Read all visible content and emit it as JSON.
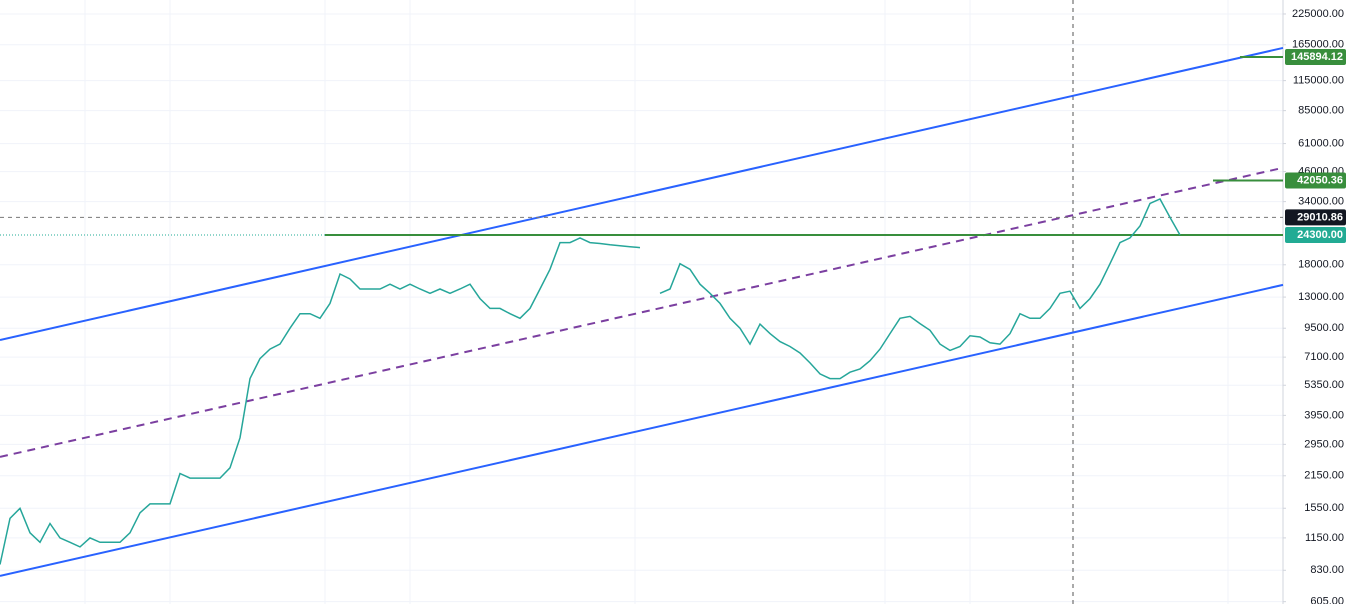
{
  "chart_data": {
    "type": "line",
    "log_scale": true,
    "grid": true,
    "ylim": [
      591,
      259000
    ],
    "yticks": [
      {
        "value": 605,
        "label": "605.00"
      },
      {
        "value": 830,
        "label": "830.00"
      },
      {
        "value": 1150,
        "label": "1150.00"
      },
      {
        "value": 1550,
        "label": "1550.00"
      },
      {
        "value": 2150,
        "label": "2150.00"
      },
      {
        "value": 2950,
        "label": "2950.00"
      },
      {
        "value": 3950,
        "label": "3950.00"
      },
      {
        "value": 5350,
        "label": "5350.00"
      },
      {
        "value": 7100,
        "label": "7100.00"
      },
      {
        "value": 9500,
        "label": "9500.00"
      },
      {
        "value": 13000,
        "label": "13000.00"
      },
      {
        "value": 18000,
        "label": "18000.00"
      },
      {
        "value": 34000,
        "label": "34000.00"
      },
      {
        "value": 46000,
        "label": "46000.00"
      },
      {
        "value": 61000,
        "label": "61000.00"
      },
      {
        "value": 85000,
        "label": "85000.00"
      },
      {
        "value": 115000,
        "label": "115000.00"
      },
      {
        "value": 165000,
        "label": "165000.00"
      },
      {
        "value": 225000,
        "label": "225000.00"
      }
    ],
    "series": [
      {
        "color": "#26a69a",
        "values": [
          880,
          1400,
          1550,
          1210,
          1100,
          1330,
          1150,
          1100,
          1050,
          1150,
          1100,
          1100,
          1100,
          1210,
          1480,
          1620,
          1620,
          1620,
          2200,
          2100,
          2100,
          2100,
          2100,
          2330,
          3150,
          5720,
          7000,
          7700,
          8100,
          9500,
          11000,
          11000,
          10500,
          12200,
          16400,
          15600,
          14100,
          14100,
          14100,
          14800,
          14100,
          14800,
          14100,
          13500,
          14100,
          13500,
          14100,
          14800,
          12800,
          11600,
          11600,
          11000,
          10500,
          11600,
          14100,
          17200,
          22500,
          22500,
          23600,
          22500,
          22300,
          22000,
          21800,
          21600,
          21400,
          null,
          13500,
          14100,
          18200,
          17200,
          14800,
          13500,
          12200,
          10500,
          9500,
          8100,
          9900,
          9000,
          8300,
          7900,
          7400,
          6700,
          6000,
          5720,
          5720,
          6100,
          6300,
          6850,
          7700,
          9000,
          10500,
          10700,
          9950,
          9300,
          8100,
          7600,
          7900,
          8800,
          8700,
          8200,
          8100,
          9000,
          11000,
          10500,
          10500,
          11600,
          13500,
          13800,
          11600,
          12800,
          14800,
          18200,
          22500,
          23600,
          26600,
          33400,
          34900,
          29000,
          24300
        ]
      }
    ],
    "trend_lines": [
      {
        "start": 8440,
        "end": 159800,
        "color": "#2962ff",
        "dashed": false
      },
      {
        "start": 784,
        "end": 14700,
        "color": "#2962ff",
        "dashed": false
      },
      {
        "start": 2600,
        "end": 47800,
        "color": "#7b3fa0",
        "dashed": true
      }
    ],
    "price_labels": [
      {
        "value": 145894.12,
        "label": "145894.12",
        "color": "#388e3c",
        "line": "short"
      },
      {
        "value": 42050.36,
        "label": "42050.36",
        "color": "#388e3c",
        "line": "short"
      },
      {
        "value": 29010.86,
        "label": "29010.86",
        "color": "#131722",
        "line": "dashed"
      },
      {
        "value": 24300,
        "label": "24300.00",
        "color": "#22ab94",
        "line": "level"
      }
    ]
  }
}
